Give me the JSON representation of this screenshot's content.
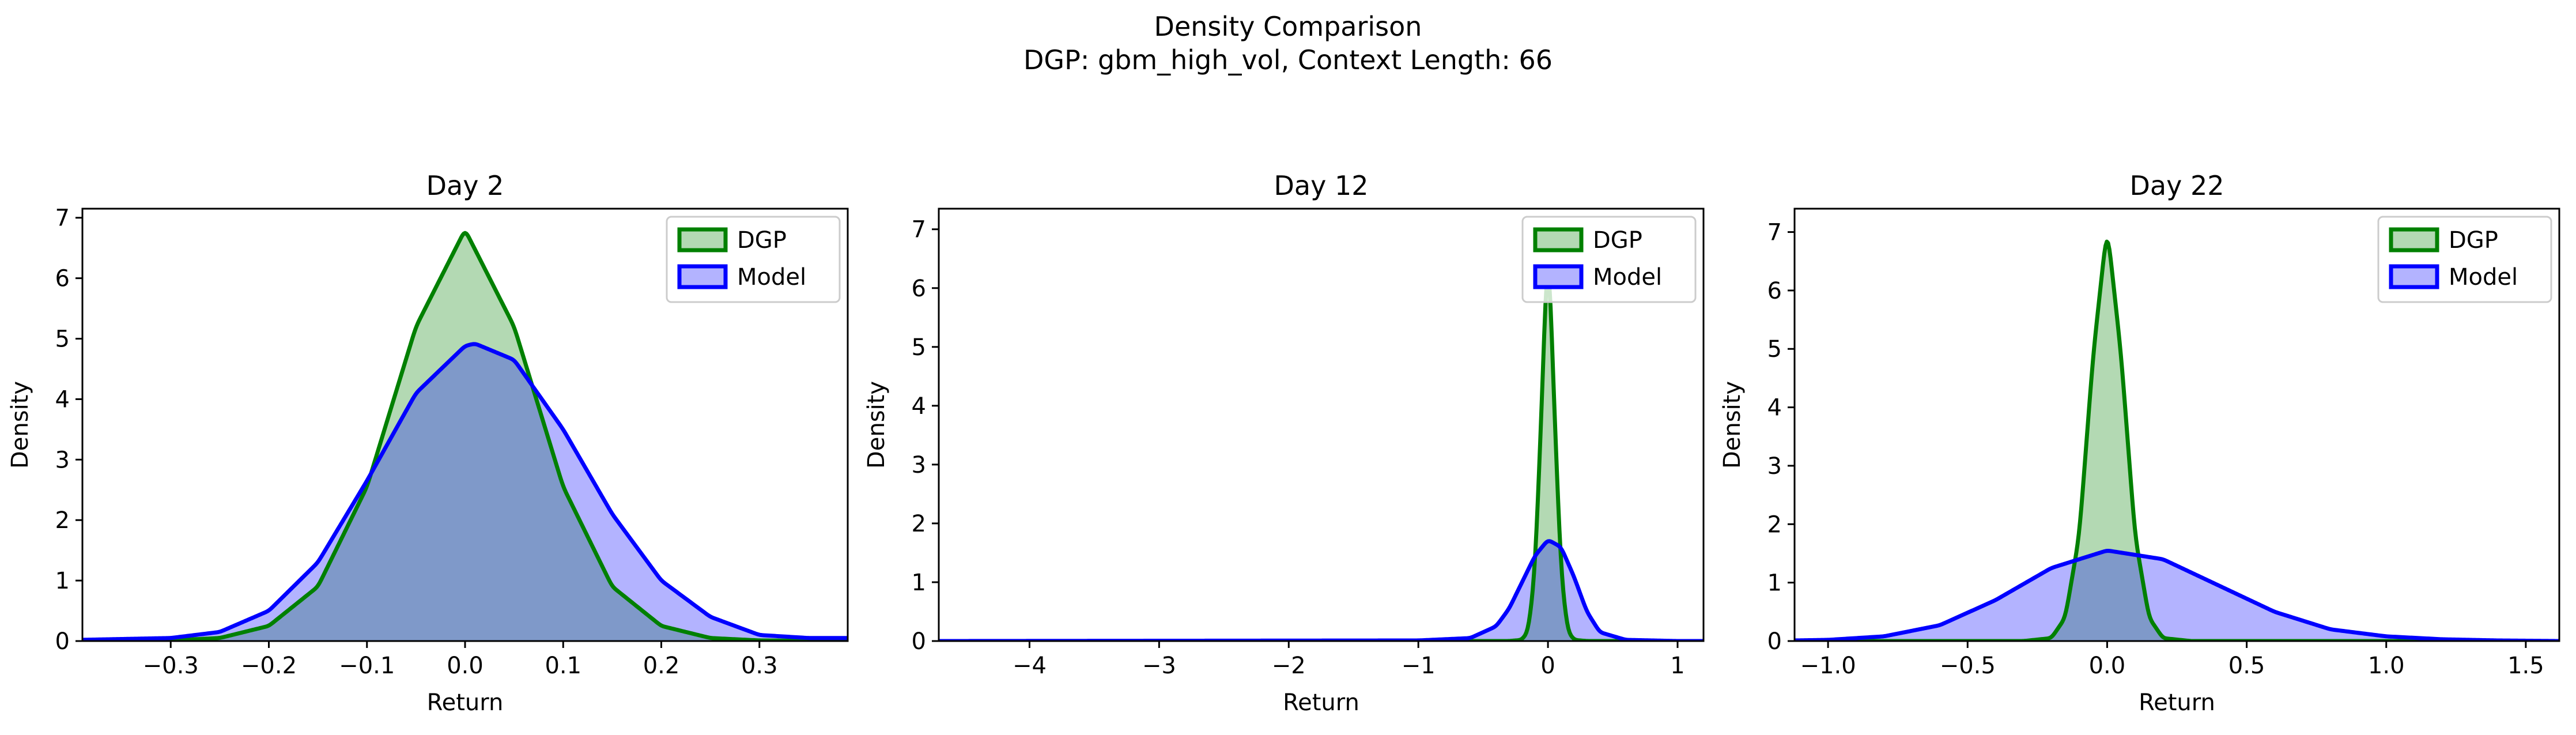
{
  "figure": {
    "title": "Density Comparison",
    "subtitle": "DGP: gbm_high_vol, Context Length: 66"
  },
  "colors": {
    "dgp_line": "#008000",
    "dgp_fill": "#b3d9b3",
    "model_line": "#0000ff",
    "model_fill": "#b3b3ff",
    "overlap_fill": "#7f99c9"
  },
  "chart_data": [
    {
      "type": "area",
      "title": "Day 2",
      "xlabel": "Return",
      "ylabel": "Density",
      "xlim": [
        -0.39,
        0.39
      ],
      "ylim": [
        0,
        7.15
      ],
      "xticks": [
        -0.3,
        -0.2,
        -0.1,
        0.0,
        0.1,
        0.2,
        0.3
      ],
      "xtick_labels": [
        "−0.3",
        "−0.2",
        "−0.1",
        "0.0",
        "0.1",
        "0.2",
        "0.3"
      ],
      "yticks": [
        0,
        1,
        2,
        3,
        4,
        5,
        6,
        7
      ],
      "ytick_labels": [
        "0",
        "1",
        "2",
        "3",
        "4",
        "5",
        "6",
        "7"
      ],
      "legend": {
        "position": "upper right",
        "entries": [
          "DGP",
          "Model"
        ]
      },
      "series": [
        {
          "name": "DGP",
          "x": [
            -0.39,
            -0.3,
            -0.25,
            -0.2,
            -0.15,
            -0.1,
            -0.05,
            0.0,
            0.05,
            0.1,
            0.15,
            0.2,
            0.25,
            0.3,
            0.39
          ],
          "y": [
            0,
            0.01,
            0.05,
            0.25,
            0.9,
            2.55,
            5.2,
            6.8,
            5.2,
            2.55,
            0.9,
            0.25,
            0.05,
            0.01,
            0
          ]
        },
        {
          "name": "Model",
          "x": [
            -0.39,
            -0.3,
            -0.25,
            -0.2,
            -0.15,
            -0.1,
            -0.05,
            0.0,
            0.01,
            0.05,
            0.1,
            0.15,
            0.2,
            0.25,
            0.3,
            0.35,
            0.39
          ],
          "y": [
            0.02,
            0.05,
            0.15,
            0.5,
            1.3,
            2.65,
            4.1,
            4.88,
            4.92,
            4.65,
            3.5,
            2.1,
            1.0,
            0.4,
            0.1,
            0.05,
            0.05
          ]
        }
      ]
    },
    {
      "type": "area",
      "title": "Day 12",
      "xlabel": "Return",
      "ylabel": "Density",
      "xlim": [
        -4.7,
        1.2
      ],
      "ylim": [
        0,
        7.35
      ],
      "xticks": [
        -4,
        -3,
        -2,
        -1,
        0,
        1
      ],
      "xtick_labels": [
        "−4",
        "−3",
        "−2",
        "−1",
        "0",
        "1"
      ],
      "yticks": [
        0,
        1,
        2,
        3,
        4,
        5,
        6,
        7
      ],
      "ytick_labels": [
        "0",
        "1",
        "2",
        "3",
        "4",
        "5",
        "6",
        "7"
      ],
      "legend": {
        "position": "upper right",
        "entries": [
          "DGP",
          "Model"
        ]
      },
      "series": [
        {
          "name": "DGP",
          "x": [
            -4.7,
            -0.3,
            -0.2,
            -0.15,
            -0.1,
            -0.05,
            0.0,
            0.05,
            0.1,
            0.15,
            0.2,
            0.3,
            1.2
          ],
          "y": [
            0,
            0,
            0.02,
            0.18,
            1.2,
            3.9,
            7.0,
            3.9,
            1.2,
            0.18,
            0.02,
            0,
            0
          ]
        },
        {
          "name": "Model",
          "x": [
            -4.7,
            -1.0,
            -0.6,
            -0.4,
            -0.3,
            -0.2,
            -0.1,
            0.0,
            0.1,
            0.2,
            0.3,
            0.4,
            0.6,
            1.0,
            1.2
          ],
          "y": [
            0,
            0.01,
            0.05,
            0.25,
            0.55,
            1.0,
            1.45,
            1.72,
            1.6,
            1.1,
            0.5,
            0.15,
            0.02,
            0,
            0
          ]
        }
      ]
    },
    {
      "type": "area",
      "title": "Day 22",
      "xlabel": "Return",
      "ylabel": "Density",
      "xlim": [
        -1.12,
        1.62
      ],
      "ylim": [
        0,
        7.4
      ],
      "xticks": [
        -1.0,
        -0.5,
        0.0,
        0.5,
        1.0,
        1.5
      ],
      "xtick_labels": [
        "−1.0",
        "−0.5",
        "0.0",
        "0.5",
        "1.0",
        "1.5"
      ],
      "yticks": [
        0,
        1,
        2,
        3,
        4,
        5,
        6,
        7
      ],
      "ytick_labels": [
        "0",
        "1",
        "2",
        "3",
        "4",
        "5",
        "6",
        "7"
      ],
      "legend": {
        "position": "upper right",
        "entries": [
          "DGP",
          "Model"
        ]
      },
      "series": [
        {
          "name": "DGP",
          "x": [
            -1.12,
            -0.3,
            -0.2,
            -0.15,
            -0.1,
            -0.05,
            0.0,
            0.05,
            0.1,
            0.15,
            0.2,
            0.3,
            1.62
          ],
          "y": [
            0,
            0,
            0.05,
            0.4,
            1.8,
            4.9,
            7.1,
            4.9,
            1.8,
            0.4,
            0.05,
            0,
            0
          ]
        },
        {
          "name": "Model",
          "x": [
            -1.12,
            -1.0,
            -0.8,
            -0.6,
            -0.4,
            -0.2,
            0.0,
            0.2,
            0.4,
            0.6,
            0.8,
            1.0,
            1.2,
            1.4,
            1.62
          ],
          "y": [
            0.01,
            0.02,
            0.08,
            0.27,
            0.7,
            1.25,
            1.55,
            1.4,
            0.95,
            0.5,
            0.2,
            0.08,
            0.03,
            0.01,
            0
          ]
        }
      ]
    }
  ]
}
